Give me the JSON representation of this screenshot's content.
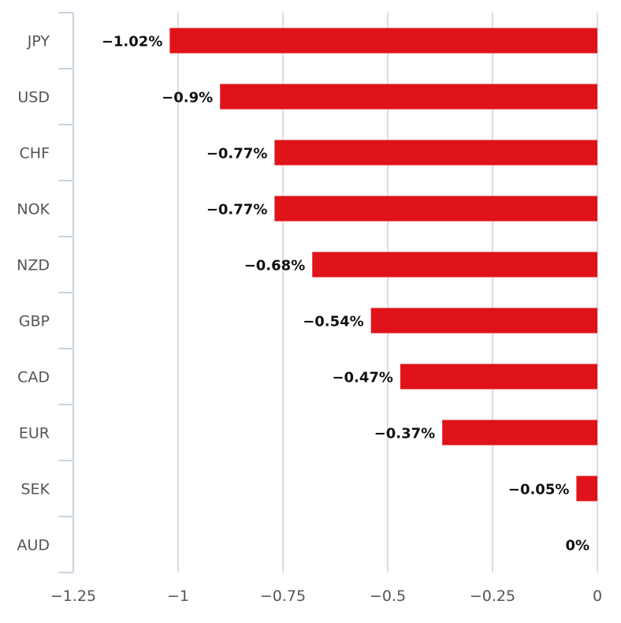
{
  "chart_data": {
    "type": "bar",
    "orientation": "horizontal",
    "categories": [
      "JPY",
      "USD",
      "CHF",
      "NOK",
      "NZD",
      "GBP",
      "CAD",
      "EUR",
      "SEK",
      "AUD"
    ],
    "values": [
      -1.02,
      -0.9,
      -0.77,
      -0.77,
      -0.68,
      -0.54,
      -0.47,
      -0.37,
      -0.05,
      0
    ],
    "data_labels": [
      "−1.02%",
      "−0.9%",
      "−0.77%",
      "−0.77%",
      "−0.68%",
      "−0.54%",
      "−0.47%",
      "−0.37%",
      "−0.05%",
      "0%"
    ],
    "x_ticks": [
      -1.25,
      -1,
      -0.75,
      -0.5,
      -0.25,
      0
    ],
    "x_tick_labels": [
      "−1.25",
      "−1",
      "−0.75",
      "−0.5",
      "−0.25",
      "0"
    ],
    "xlim": [
      -1.25,
      0
    ],
    "grid": "vertical",
    "title": "",
    "xlabel": "",
    "ylabel": "",
    "colors": {
      "bar": "#e0131b",
      "grid": "#dddddd",
      "axis": "#c9d2e1",
      "category_text": "#555555",
      "label_text": "#111111"
    }
  }
}
